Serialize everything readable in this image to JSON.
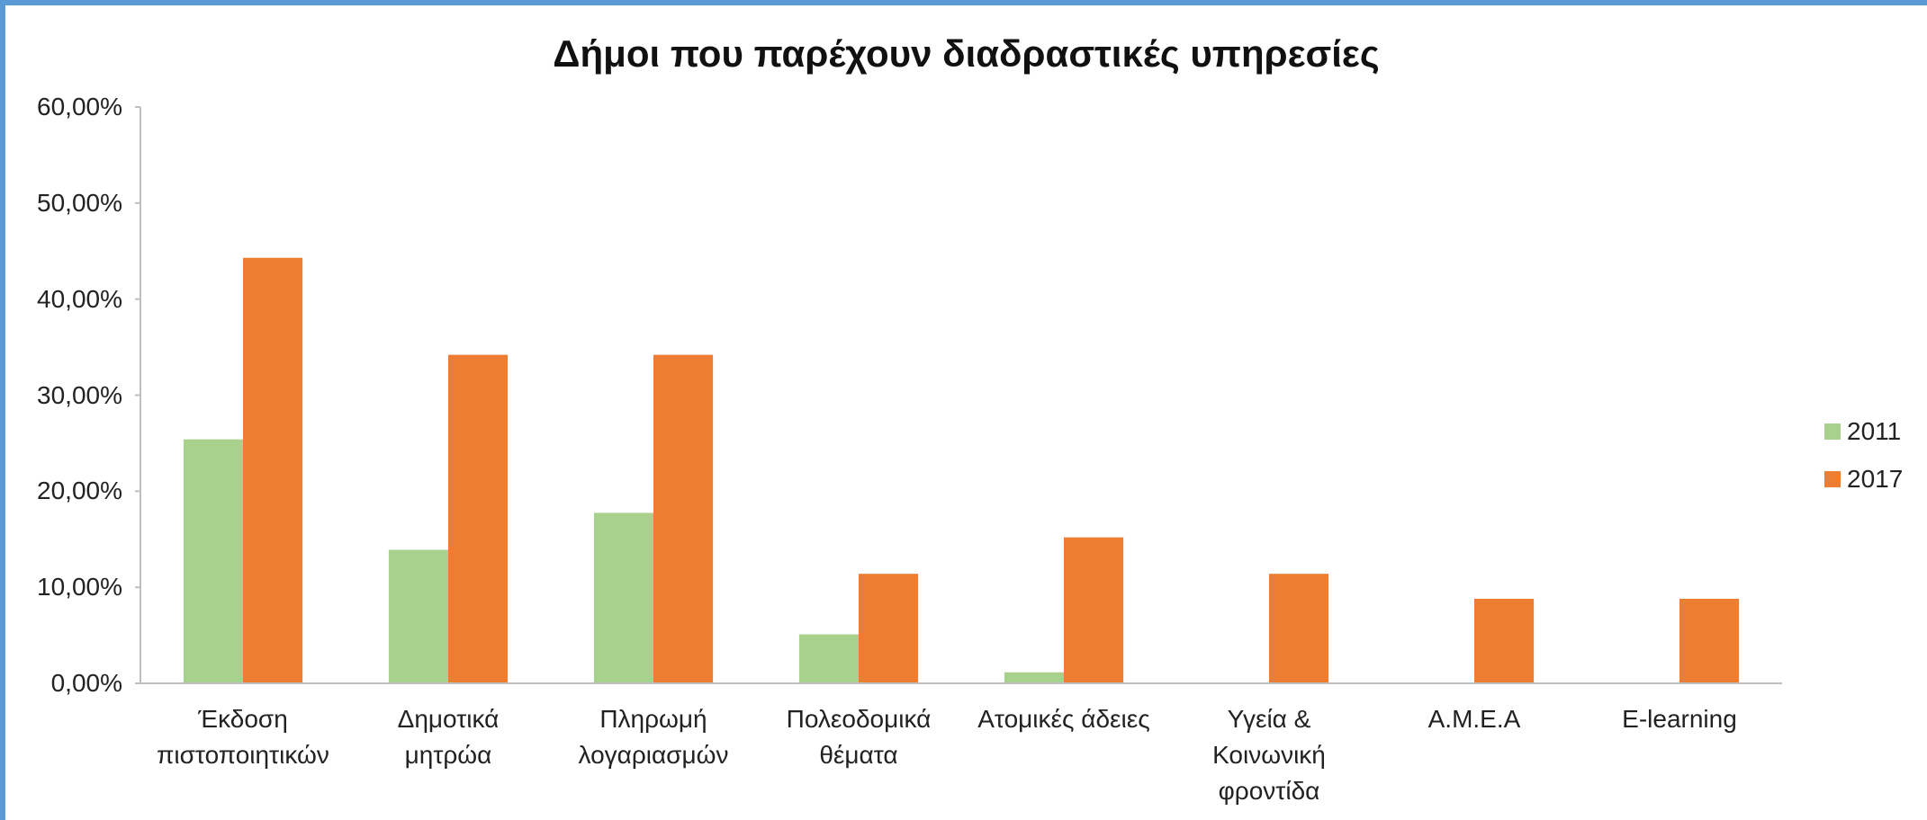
{
  "chart_data": {
    "type": "bar",
    "title": "Δήμοι που παρέχουν διαδραστικές υπηρεσίες",
    "categories": [
      "Έκδοση πιστοποιητικών",
      "Δημοτικά μητρώα",
      "Πληρωμή λογαριασμών",
      "Πολεοδομικά θέματα",
      "Ατομικές άδειες",
      "Υγεία & Κοινωνική φροντίδα",
      "Α.Μ.Ε.Α",
      "E-learning"
    ],
    "series": [
      {
        "name": "2011",
        "color": "#a9d18e",
        "values": [
          25.4,
          13.9,
          17.75,
          5.1,
          1.15,
          0,
          0,
          0
        ]
      },
      {
        "name": "2017",
        "color": "#ed7d31",
        "values": [
          44.3,
          34.2,
          34.2,
          11.4,
          15.2,
          11.4,
          8.8,
          8.8
        ]
      }
    ],
    "ylim": [
      0,
      60
    ],
    "yticks": [
      {
        "value": 0,
        "label": "0,00%"
      },
      {
        "value": 10,
        "label": "10,00%"
      },
      {
        "value": 20,
        "label": "20,00%"
      },
      {
        "value": 30,
        "label": "30,00%"
      },
      {
        "value": 40,
        "label": "40,00%"
      },
      {
        "value": 50,
        "label": "50,00%"
      },
      {
        "value": 60,
        "label": "60,00%"
      }
    ],
    "grid": false,
    "legend": "right"
  }
}
